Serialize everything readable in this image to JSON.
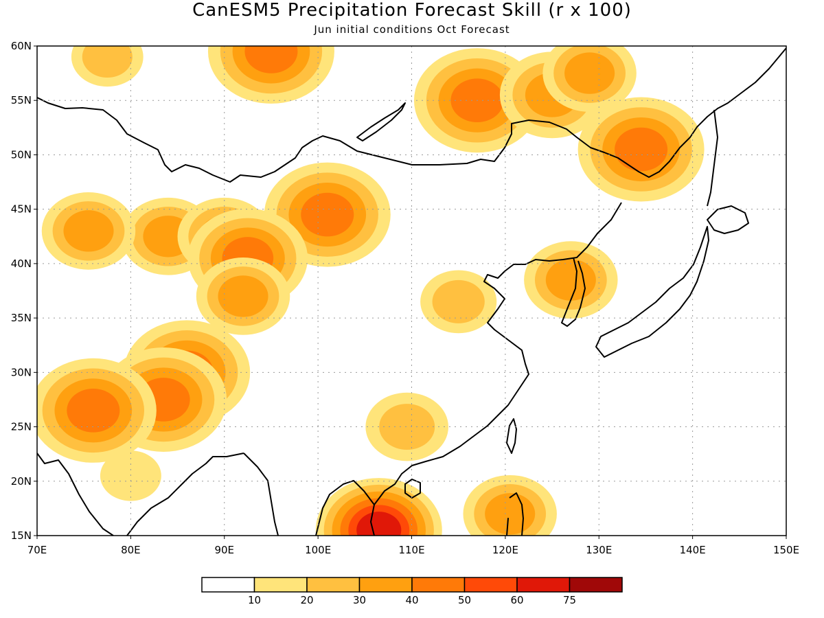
{
  "title": "CanESM5 Precipitation Forecast Skill (r x 100)",
  "subtitle": "Jun initial conditions  Oct Forecast",
  "axes": {
    "lon_min": 70,
    "lon_max": 150,
    "lat_min": 15,
    "lat_max": 60,
    "x_ticks": [
      {
        "value": 70,
        "label": "70E"
      },
      {
        "value": 80,
        "label": "80E"
      },
      {
        "value": 90,
        "label": "90E"
      },
      {
        "value": 100,
        "label": "100E"
      },
      {
        "value": 110,
        "label": "110E"
      },
      {
        "value": 120,
        "label": "120E"
      },
      {
        "value": 130,
        "label": "130E"
      },
      {
        "value": 140,
        "label": "140E"
      },
      {
        "value": 150,
        "label": "150E"
      }
    ],
    "y_ticks": [
      {
        "value": 15,
        "label": "15N"
      },
      {
        "value": 20,
        "label": "20N"
      },
      {
        "value": 25,
        "label": "25N"
      },
      {
        "value": 30,
        "label": "30N"
      },
      {
        "value": 35,
        "label": "35N"
      },
      {
        "value": 40,
        "label": "40N"
      },
      {
        "value": 45,
        "label": "45N"
      },
      {
        "value": 50,
        "label": "50N"
      },
      {
        "value": 55,
        "label": "55N"
      },
      {
        "value": 60,
        "label": "60N"
      }
    ],
    "grid": "dotted"
  },
  "legend": {
    "thresholds": [
      "10",
      "20",
      "30",
      "40",
      "50",
      "60",
      "75"
    ],
    "colors": [
      "#ffffff",
      "#ffe47a",
      "#ffc040",
      "#ffa010",
      "#ff7a08",
      "#ff4a08",
      "#e01808",
      "#a00808"
    ]
  },
  "chart_data": {
    "type": "heatmap",
    "title": "CanESM5 Precipitation Forecast Skill (r x 100)",
    "subtitle": "Jun initial conditions  Oct Forecast",
    "x_range": [
      70,
      150
    ],
    "y_range": [
      15,
      60
    ],
    "levels": [
      10,
      20,
      30,
      40,
      50,
      60,
      75
    ],
    "skill_regions": [
      {
        "lon": 95,
        "lat": 59.5,
        "peak": 45
      },
      {
        "lon": 77.5,
        "lat": 59,
        "peak": 20
      },
      {
        "lon": 117,
        "lat": 55,
        "peak": 45
      },
      {
        "lon": 125,
        "lat": 55.5,
        "peak": 35
      },
      {
        "lon": 129,
        "lat": 57.5,
        "peak": 30
      },
      {
        "lon": 134.5,
        "lat": 50.5,
        "peak": 45
      },
      {
        "lon": 101,
        "lat": 44.5,
        "peak": 45
      },
      {
        "lon": 84,
        "lat": 42.5,
        "peak": 30
      },
      {
        "lon": 90,
        "lat": 42.5,
        "peak": 30
      },
      {
        "lon": 92.5,
        "lat": 40.5,
        "peak": 42
      },
      {
        "lon": 75.5,
        "lat": 43,
        "peak": 30
      },
      {
        "lon": 92,
        "lat": 37,
        "peak": 30
      },
      {
        "lon": 86,
        "lat": 30,
        "peak": 45
      },
      {
        "lon": 83.5,
        "lat": 27.5,
        "peak": 45
      },
      {
        "lon": 76,
        "lat": 26.5,
        "peak": 48
      },
      {
        "lon": 80,
        "lat": 20.5,
        "peak": 15
      },
      {
        "lon": 106.5,
        "lat": 15.5,
        "peak": 65
      },
      {
        "lon": 109.5,
        "lat": 25,
        "peak": 25
      },
      {
        "lon": 115,
        "lat": 36.5,
        "peak": 22
      },
      {
        "lon": 127,
        "lat": 38.5,
        "peak": 30
      },
      {
        "lon": 120.5,
        "lat": 17,
        "peak": 30
      }
    ]
  }
}
